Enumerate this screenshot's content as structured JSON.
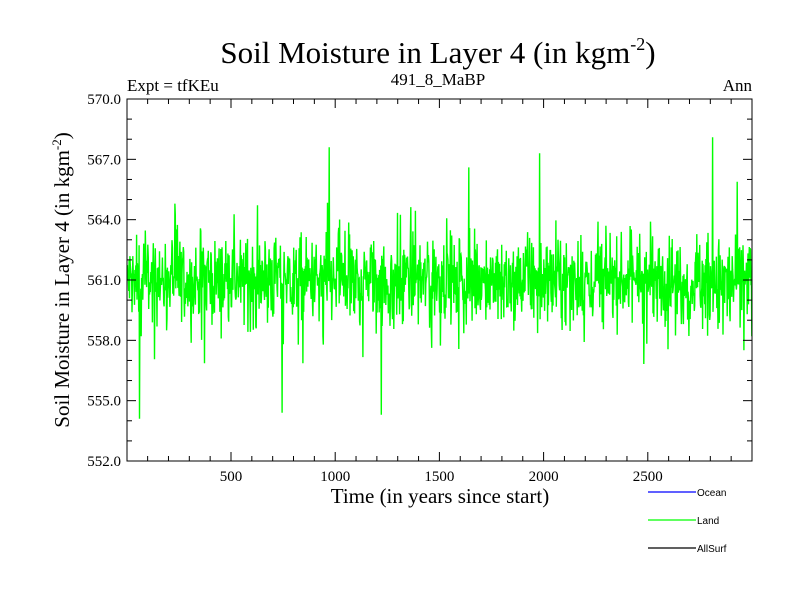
{
  "chart_data": {
    "type": "line",
    "title": "Soil Moisture in Layer 4 (in kgm",
    "title_exp": "-2",
    "title_tail": ")",
    "subtitle_left": "Expt = tfKEu",
    "subtitle_center": "491_8_MaBP",
    "subtitle_right": "Ann",
    "xlabel": "Time (in years since start)",
    "ylabel": "Soil Moisture in Layer 4 (in kgm",
    "ylabel_exp": "-2",
    "ylabel_tail": ")",
    "xlim": [
      1,
      3000
    ],
    "ylim": [
      552.0,
      570.0
    ],
    "xticks": [
      500,
      1000,
      1500,
      2000,
      2500
    ],
    "yticks": [
      "552.0",
      "555.0",
      "558.0",
      "561.0",
      "564.0",
      "567.0",
      "570.0"
    ],
    "grid": false,
    "legend_position": "bottom-right",
    "series": [
      {
        "name": "Ocean",
        "color": "#0000ff",
        "values": []
      },
      {
        "name": "Land",
        "color": "#00ff00",
        "mean": 561.0,
        "range": [
          554.2,
          568.1
        ],
        "samples_x": [
          1,
          60,
          230,
          745,
          970,
          1220,
          1640,
          1980,
          2810,
          3000
        ],
        "samples_y": [
          561.0,
          554.1,
          564.8,
          554.4,
          567.6,
          554.3,
          566.6,
          567.3,
          568.1,
          558.2
        ]
      },
      {
        "name": "AllSurf",
        "color": "#000000",
        "values": []
      }
    ]
  }
}
